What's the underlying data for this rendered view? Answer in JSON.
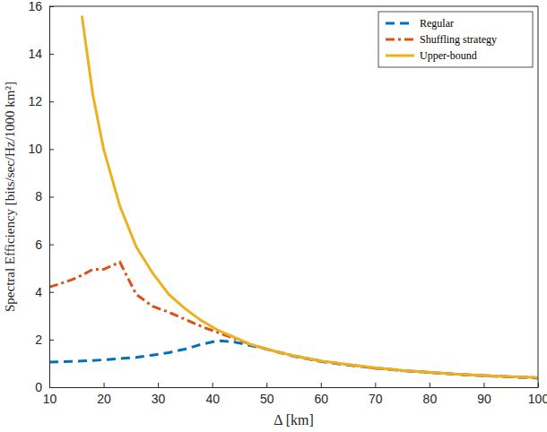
{
  "chart_data": {
    "type": "line",
    "x_label": "Δ [km]",
    "y_label": "Spectral Efficiency [bits/sec/Hz/1000 km²]",
    "x": [
      10,
      12,
      14,
      16,
      18,
      20,
      23,
      26,
      29,
      32,
      35,
      38,
      41,
      44,
      47,
      50,
      55,
      60,
      65,
      70,
      75,
      80,
      85,
      90,
      95,
      100
    ],
    "series": [
      {
        "name": "Regular",
        "color": "#0072bd",
        "line_style": "dashed",
        "values": [
          1.05,
          1.07,
          1.08,
          1.1,
          1.12,
          1.15,
          1.2,
          1.25,
          1.35,
          1.45,
          1.6,
          1.8,
          1.95,
          1.9,
          1.75,
          1.6,
          1.3,
          1.08,
          0.93,
          0.8,
          0.7,
          0.62,
          0.54,
          0.48,
          0.43,
          0.38
        ]
      },
      {
        "name": "Shuffling strategy",
        "color": "#d95319",
        "line_style": "dashdot",
        "values": [
          4.2,
          4.35,
          4.5,
          4.7,
          4.95,
          4.95,
          5.25,
          3.9,
          3.4,
          3.15,
          2.85,
          2.55,
          2.3,
          2.05,
          1.8,
          1.6,
          1.32,
          1.1,
          0.95,
          0.8,
          0.7,
          0.62,
          0.55,
          0.49,
          0.44,
          0.4
        ]
      },
      {
        "name": "Upper-bound",
        "color": "#edb120",
        "line_style": "solid",
        "values": [
          null,
          null,
          null,
          15.6,
          12.3,
          10.0,
          7.6,
          5.9,
          4.8,
          3.9,
          3.3,
          2.8,
          2.4,
          2.1,
          1.8,
          1.6,
          1.32,
          1.1,
          0.95,
          0.82,
          0.71,
          0.63,
          0.55,
          0.49,
          0.44,
          0.4
        ]
      }
    ],
    "xlim": [
      10,
      100
    ],
    "xticks": [
      10,
      20,
      30,
      40,
      50,
      60,
      70,
      80,
      90,
      100
    ],
    "ylim": [
      0,
      16
    ],
    "yticks": [
      0,
      2,
      4,
      6,
      8,
      10,
      12,
      14,
      16
    ],
    "grid": false,
    "legend": "northeast"
  }
}
